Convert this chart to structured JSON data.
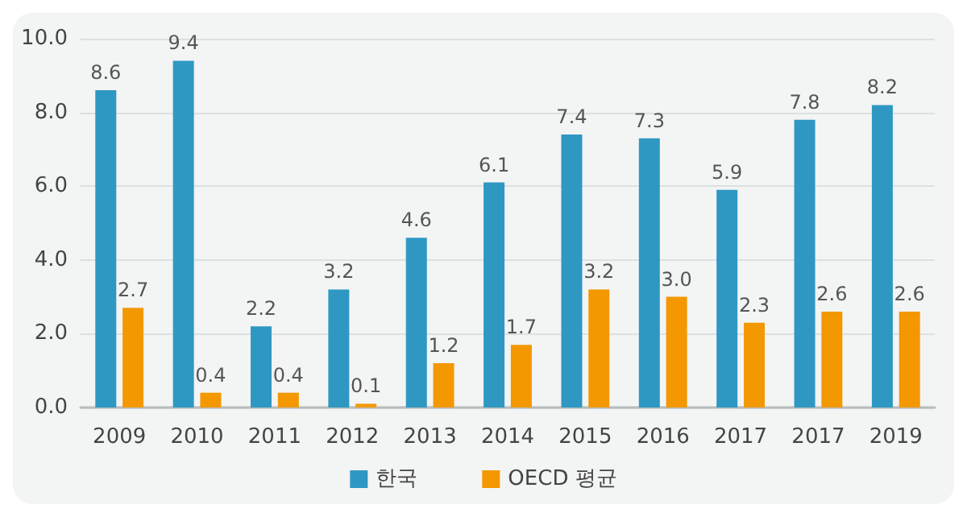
{
  "chart_data": {
    "type": "bar",
    "categories": [
      "2009",
      "2010",
      "2011",
      "2012",
      "2013",
      "2014",
      "2015",
      "2016",
      "2017",
      "2017",
      "2019"
    ],
    "series": [
      {
        "name": "한국",
        "color": "#2e98c3",
        "values": [
          8.6,
          9.4,
          2.2,
          3.2,
          4.6,
          6.1,
          7.4,
          7.3,
          5.9,
          7.8,
          8.2
        ],
        "value_labels": [
          "8.6",
          "9.4",
          "2.2",
          "3.2",
          "4.6",
          "6.1",
          "7.4",
          "7.3",
          "5.9",
          "7.8",
          "8.2"
        ]
      },
      {
        "name": "OECD 평균",
        "color": "#f39800",
        "values": [
          2.7,
          0.4,
          0.4,
          0.1,
          1.2,
          1.7,
          3.2,
          3.0,
          2.3,
          2.6,
          2.6
        ],
        "value_labels": [
          "2.7",
          "0.4",
          "0.4",
          "0.1",
          "1.2",
          "1.7",
          "3.2",
          "3.0",
          "2.3",
          "2.6",
          "2.6"
        ]
      }
    ],
    "ylim": [
      0,
      10
    ],
    "yticks": [
      {
        "value": 0,
        "label": "0.0"
      },
      {
        "value": 2,
        "label": "2.0"
      },
      {
        "value": 4,
        "label": "4.0"
      },
      {
        "value": 6,
        "label": "6.0"
      },
      {
        "value": 8,
        "label": "8.0"
      },
      {
        "value": 10,
        "label": "10.0"
      }
    ],
    "grid": "y",
    "legend": "bottom"
  }
}
